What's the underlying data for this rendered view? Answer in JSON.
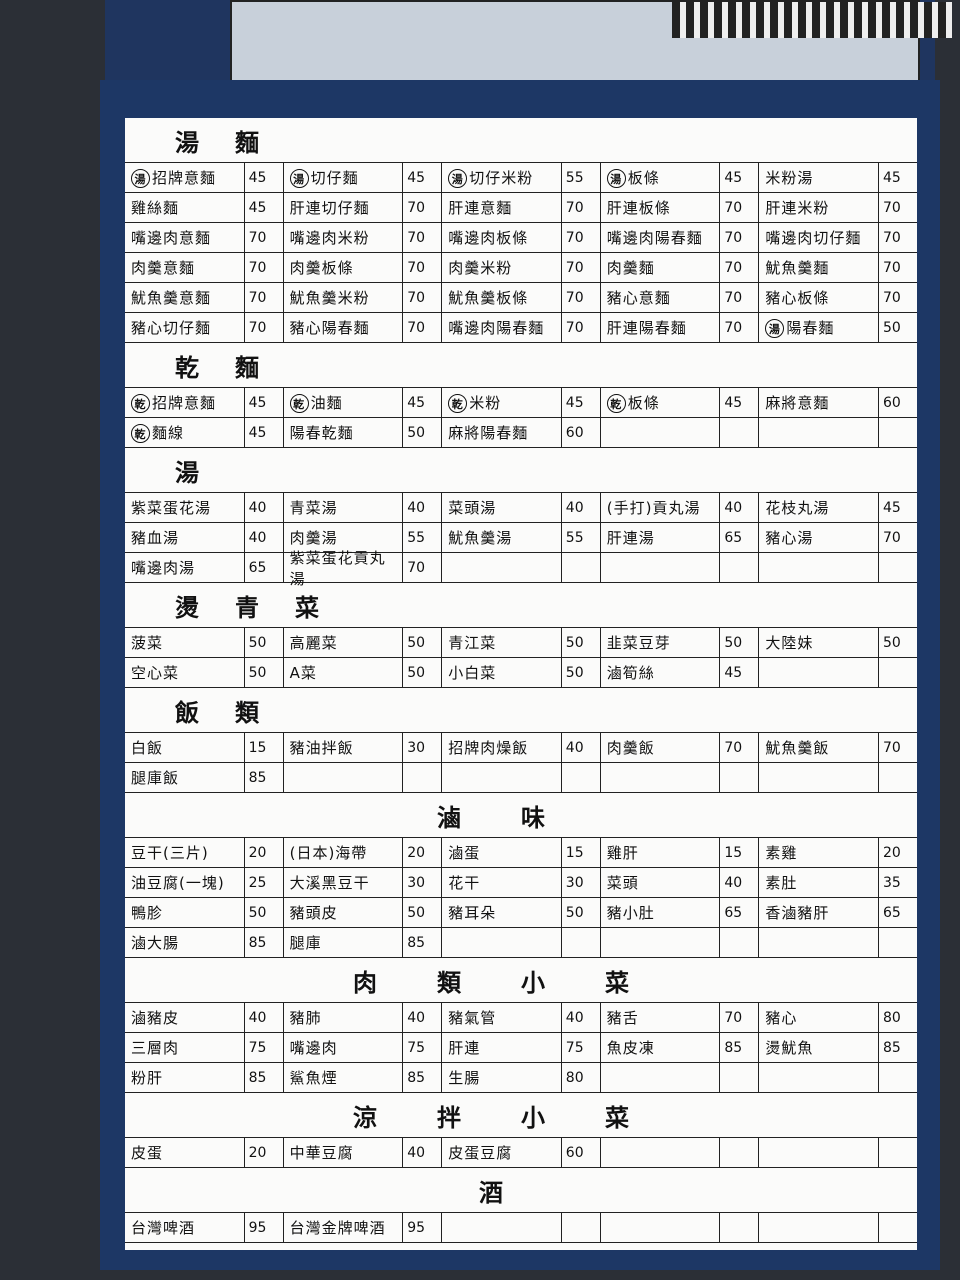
{
  "sections": [
    {
      "title": "湯麵",
      "rows": [
        [
          {
            "badge": "湯",
            "name": "招牌意麵",
            "price": 45
          },
          {
            "badge": "湯",
            "name": "切仔麵",
            "price": 45
          },
          {
            "badge": "湯",
            "name": "切仔米粉",
            "price": 55
          },
          {
            "badge": "湯",
            "name": "板條",
            "price": 45
          },
          {
            "name": "米粉湯",
            "price": 45
          }
        ],
        [
          {
            "name": "雞絲麵",
            "price": 45
          },
          {
            "name": "肝連切仔麵",
            "price": 70
          },
          {
            "name": "肝連意麵",
            "price": 70
          },
          {
            "name": "肝連板條",
            "price": 70
          },
          {
            "name": "肝連米粉",
            "price": 70
          }
        ],
        [
          {
            "name": "嘴邊肉意麵",
            "price": 70
          },
          {
            "name": "嘴邊肉米粉",
            "price": 70
          },
          {
            "name": "嘴邊肉板條",
            "price": 70
          },
          {
            "name": "嘴邊肉陽春麵",
            "price": 70
          },
          {
            "name": "嘴邊肉切仔麵",
            "price": 70
          }
        ],
        [
          {
            "name": "肉羹意麵",
            "price": 70
          },
          {
            "name": "肉羹板條",
            "price": 70
          },
          {
            "name": "肉羹米粉",
            "price": 70
          },
          {
            "name": "肉羹麵",
            "price": 70
          },
          {
            "name": "魷魚羹麵",
            "price": 70
          }
        ],
        [
          {
            "name": "魷魚羹意麵",
            "price": 70
          },
          {
            "name": "魷魚羹米粉",
            "price": 70
          },
          {
            "name": "魷魚羹板條",
            "price": 70
          },
          {
            "name": "豬心意麵",
            "price": 70
          },
          {
            "name": "豬心板條",
            "price": 70
          }
        ],
        [
          {
            "name": "豬心切仔麵",
            "price": 70
          },
          {
            "name": "豬心陽春麵",
            "price": 70
          },
          {
            "name": "嘴邊肉陽春麵",
            "price": 70
          },
          {
            "name": "肝連陽春麵",
            "price": 70
          },
          {
            "badge": "湯",
            "name": "陽春麵",
            "price": 50
          }
        ]
      ]
    },
    {
      "title": "乾麵",
      "rows": [
        [
          {
            "badge": "乾",
            "name": "招牌意麵",
            "price": 45
          },
          {
            "badge": "乾",
            "name": "油麵",
            "price": 45
          },
          {
            "badge": "乾",
            "name": "米粉",
            "price": 45
          },
          {
            "badge": "乾",
            "name": "板條",
            "price": 45
          },
          {
            "name": "麻將意麵",
            "price": 60
          }
        ],
        [
          {
            "badge": "乾",
            "name": "麵線",
            "price": 45
          },
          {
            "name": "陽春乾麵",
            "price": 50
          },
          {
            "name": "麻將陽春麵",
            "price": 60
          },
          null,
          null
        ]
      ]
    },
    {
      "title": "湯",
      "rows": [
        [
          {
            "name": "紫菜蛋花湯",
            "price": 40
          },
          {
            "name": "青菜湯",
            "price": 40
          },
          {
            "name": "菜頭湯",
            "price": 40
          },
          {
            "name": "(手打)貢丸湯",
            "price": 40
          },
          {
            "name": "花枝丸湯",
            "price": 45
          }
        ],
        [
          {
            "name": "豬血湯",
            "price": 40
          },
          {
            "name": "肉羹湯",
            "price": 55
          },
          {
            "name": "魷魚羹湯",
            "price": 55
          },
          {
            "name": "肝連湯",
            "price": 65
          },
          {
            "name": "豬心湯",
            "price": 70
          }
        ],
        [
          {
            "name": "嘴邊肉湯",
            "price": 65
          },
          {
            "name": "紫菜蛋花貢丸湯",
            "price": 70
          },
          null,
          null,
          null
        ]
      ]
    },
    {
      "title": "燙青菜",
      "rows": [
        [
          {
            "name": "菠菜",
            "price": 50
          },
          {
            "name": "高麗菜",
            "price": 50
          },
          {
            "name": "青江菜",
            "price": 50
          },
          {
            "name": "韭菜豆芽",
            "price": 50
          },
          {
            "name": "大陸妹",
            "price": 50
          }
        ],
        [
          {
            "name": "空心菜",
            "price": 50
          },
          {
            "name": "A菜",
            "price": 50
          },
          {
            "name": "小白菜",
            "price": 50
          },
          {
            "name": "滷筍絲",
            "price": 45
          },
          null
        ]
      ]
    },
    {
      "title": "飯類",
      "rows": [
        [
          {
            "name": "白飯",
            "price": 15
          },
          {
            "name": "豬油拌飯",
            "price": 30
          },
          {
            "name": "招牌肉燥飯",
            "price": 40
          },
          {
            "name": "肉羹飯",
            "price": 70
          },
          {
            "name": "魷魚羹飯",
            "price": 70
          }
        ],
        [
          {
            "name": "腿庫飯",
            "price": 85
          },
          null,
          null,
          null,
          null
        ]
      ]
    },
    {
      "title": "滷味",
      "rows": [
        [
          {
            "name": "豆干(三片)",
            "price": 20
          },
          {
            "name": "(日本)海帶",
            "price": 20
          },
          {
            "name": "滷蛋",
            "price": 15
          },
          {
            "name": "雞肝",
            "price": 15
          },
          {
            "name": "素雞",
            "price": 20
          }
        ],
        [
          {
            "name": "油豆腐(一塊)",
            "price": 25
          },
          {
            "name": "大溪黑豆干",
            "price": 30
          },
          {
            "name": "花干",
            "price": 30
          },
          {
            "name": "菜頭",
            "price": 40
          },
          {
            "name": "素肚",
            "price": 35
          }
        ],
        [
          {
            "name": "鴨胗",
            "price": 50
          },
          {
            "name": "豬頭皮",
            "price": 50
          },
          {
            "name": "豬耳朵",
            "price": 50
          },
          {
            "name": "豬小肚",
            "price": 65
          },
          {
            "name": "香滷豬肝",
            "price": 65
          }
        ],
        [
          {
            "name": "滷大腸",
            "price": 85
          },
          {
            "name": "腿庫",
            "price": 85
          },
          null,
          null,
          null
        ]
      ]
    },
    {
      "title": "肉類小菜",
      "rows": [
        [
          {
            "name": "滷豬皮",
            "price": 40
          },
          {
            "name": "豬肺",
            "price": 40
          },
          {
            "name": "豬氣管",
            "price": 40
          },
          {
            "name": "豬舌",
            "price": 70
          },
          {
            "name": "豬心",
            "price": 80
          }
        ],
        [
          {
            "name": "三層肉",
            "price": 75
          },
          {
            "name": "嘴邊肉",
            "price": 75
          },
          {
            "name": "肝連",
            "price": 75
          },
          {
            "name": "魚皮凍",
            "price": 85
          },
          {
            "name": "燙魷魚",
            "price": 85
          }
        ],
        [
          {
            "name": "粉肝",
            "price": 85
          },
          {
            "name": "鯊魚煙",
            "price": 85
          },
          {
            "name": "生腸",
            "price": 80
          },
          null,
          null
        ]
      ]
    },
    {
      "title": "涼拌小菜",
      "rows": [
        [
          {
            "name": "皮蛋",
            "price": 20
          },
          {
            "name": "中華豆腐",
            "price": 40
          },
          {
            "name": "皮蛋豆腐",
            "price": 60
          },
          null,
          null
        ]
      ]
    },
    {
      "title": "酒",
      "rows": [
        [
          {
            "name": "台灣啤酒",
            "price": 95
          },
          {
            "name": "台灣金牌啤酒",
            "price": 95
          },
          null,
          null,
          null
        ]
      ]
    }
  ]
}
